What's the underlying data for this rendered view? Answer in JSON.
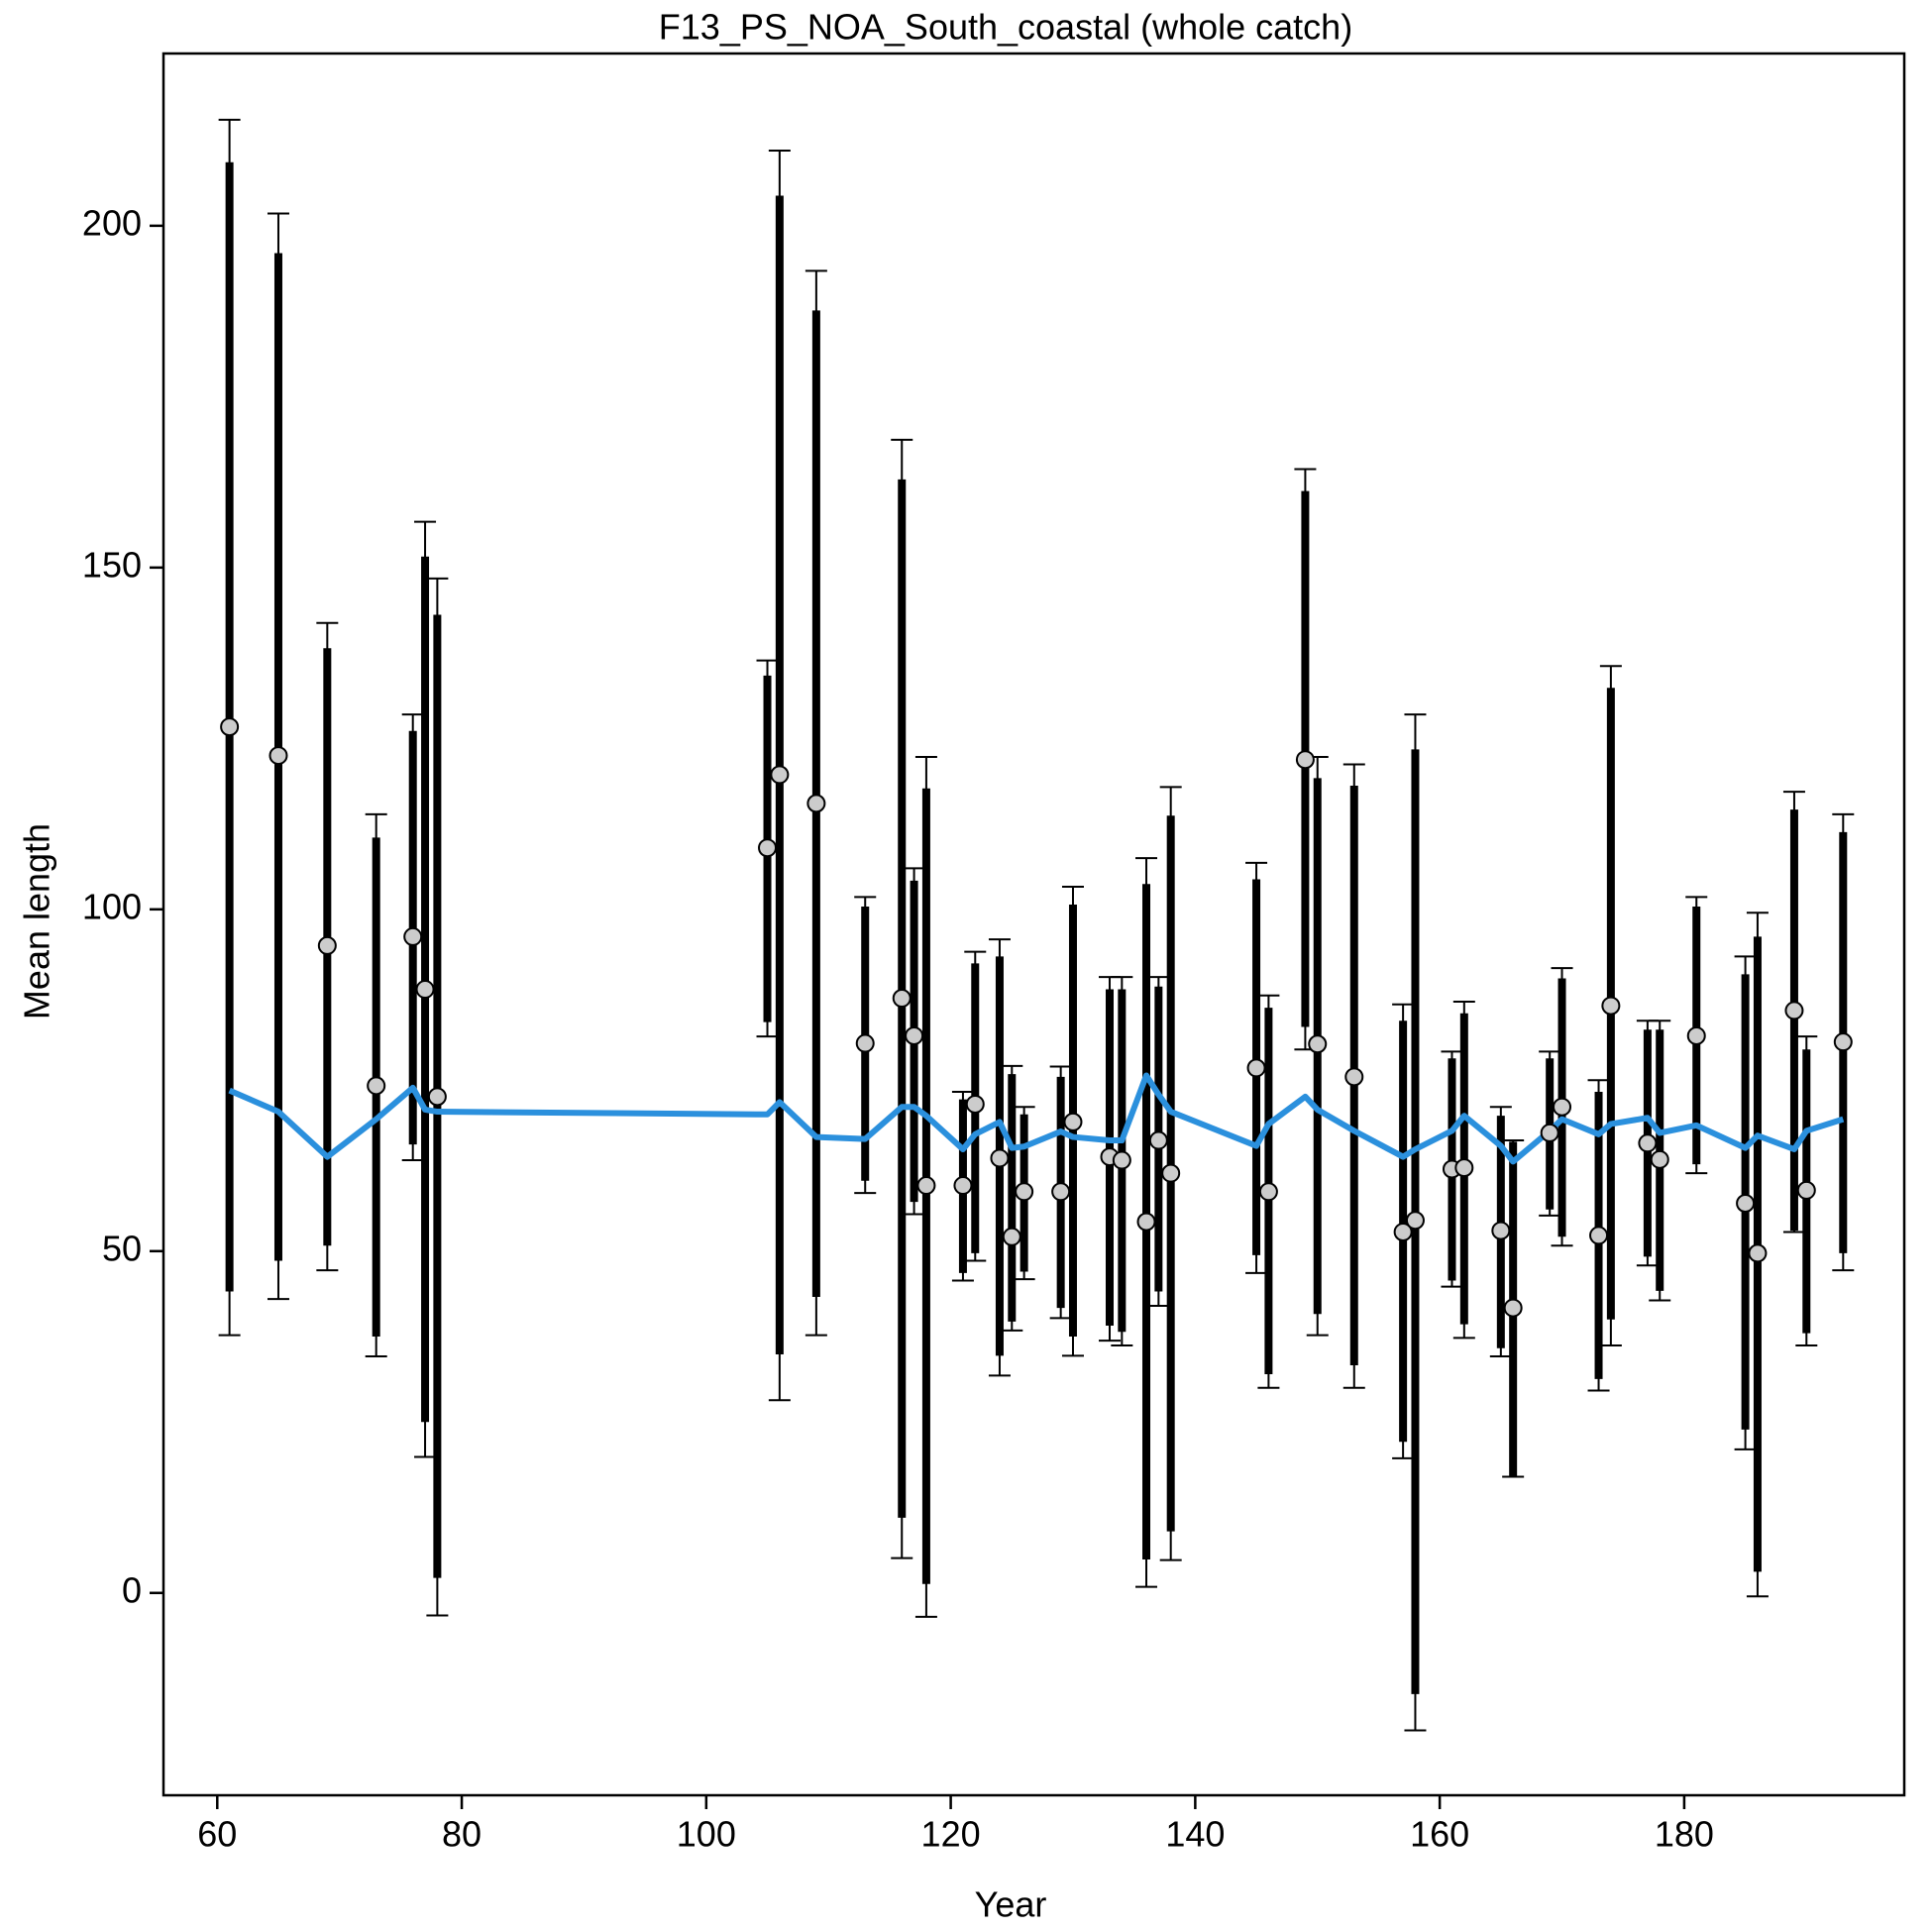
{
  "chart_data": {
    "type": "errorbar-line",
    "title": "F13_PS_NOA_South_coastal (whole catch)",
    "x_label": "Year",
    "y_label": "Mean length",
    "xlim": [
      55.6,
      198.0
    ],
    "ylim": [
      -29.6,
      225.2
    ],
    "xticks": [
      60,
      80,
      100,
      120,
      140,
      160,
      180
    ],
    "yticks": [
      0,
      50,
      100,
      150,
      200
    ],
    "x": [
      61,
      65,
      69,
      73,
      76,
      77,
      78,
      105,
      106,
      109,
      113,
      116,
      117,
      118,
      121,
      122,
      124,
      125,
      126,
      129,
      130,
      133,
      134,
      136,
      137,
      138,
      145,
      146,
      149,
      150,
      153,
      157,
      158,
      161,
      162,
      165,
      166,
      169,
      170,
      173,
      174,
      177,
      178,
      181,
      185,
      186,
      189,
      190,
      193
    ],
    "observed": {
      "color": "#cccccc",
      "values": [
        126.7,
        122.5,
        94.7,
        74.2,
        96.0,
        88.3,
        72.6,
        109.0,
        119.7,
        115.5,
        80.4,
        87.0,
        81.5,
        59.6,
        59.6,
        71.5,
        63.6,
        52.1,
        58.7,
        58.7,
        68.9,
        63.8,
        63.3,
        54.3,
        66.2,
        61.4,
        76.8,
        58.7,
        121.9,
        80.3,
        75.5,
        52.8,
        54.5,
        62.0,
        62.2,
        53.0,
        41.7,
        67.3,
        71.1,
        52.3,
        85.9,
        65.8,
        63.4,
        81.5,
        57.0,
        49.7,
        85.2,
        58.9,
        80.6
      ]
    },
    "inner_interval": {
      "color": "#000000",
      "lower": [
        44.1,
        48.6,
        50.8,
        37.5,
        65.6,
        25.0,
        2.2,
        83.5,
        34.9,
        43.3,
        60.3,
        11.0,
        57.2,
        1.3,
        46.8,
        49.7,
        34.7,
        39.7,
        47.0,
        41.7,
        37.5,
        39.1,
        38.2,
        4.9,
        44.1,
        9.0,
        49.4,
        32.0,
        82.8,
        40.8,
        33.3,
        22.1,
        -14.8,
        45.7,
        39.3,
        35.8,
        17.0,
        56.1,
        52.1,
        31.3,
        40.0,
        49.2,
        44.2,
        62.7,
        23.9,
        3.1,
        53.0,
        38.0,
        49.7
      ],
      "upper": [
        209.3,
        196.0,
        138.2,
        110.5,
        126.1,
        151.6,
        143.1,
        134.2,
        204.4,
        187.6,
        100.4,
        162.9,
        104.2,
        117.7,
        72.2,
        92.1,
        93.1,
        75.9,
        70.0,
        75.5,
        100.7,
        88.3,
        88.3,
        103.7,
        88.7,
        113.7,
        104.4,
        85.6,
        161.2,
        119.2,
        118.1,
        83.7,
        123.4,
        78.2,
        84.8,
        69.8,
        66.0,
        78.2,
        89.9,
        73.3,
        132.4,
        82.4,
        82.4,
        100.4,
        90.5,
        96.0,
        114.6,
        79.5,
        111.3
      ]
    },
    "outer_interval": {
      "color": "#000000",
      "lower": [
        37.7,
        43.0,
        47.2,
        34.6,
        63.3,
        19.9,
        -3.3,
        81.4,
        28.2,
        37.7,
        58.5,
        5.1,
        55.4,
        -3.5,
        45.7,
        48.6,
        31.8,
        38.4,
        45.9,
        40.2,
        34.7,
        36.9,
        36.2,
        0.9,
        42.0,
        4.8,
        46.8,
        30.0,
        79.5,
        37.7,
        30.0,
        19.7,
        -20.1,
        44.8,
        37.3,
        34.6,
        17.0,
        55.2,
        50.8,
        29.6,
        36.2,
        47.9,
        42.8,
        61.4,
        21.0,
        -0.5,
        52.8,
        36.2,
        47.2
      ],
      "upper": [
        215.5,
        201.8,
        141.9,
        113.9,
        128.5,
        156.7,
        148.4,
        136.4,
        211.0,
        193.4,
        101.8,
        168.7,
        106.0,
        122.3,
        73.3,
        93.8,
        95.6,
        77.1,
        71.1,
        77.0,
        103.3,
        90.1,
        90.1,
        107.5,
        90.1,
        117.9,
        106.8,
        87.4,
        164.4,
        122.3,
        121.2,
        86.1,
        128.5,
        79.2,
        86.5,
        71.1,
        66.2,
        79.2,
        91.4,
        75.0,
        135.6,
        83.7,
        83.7,
        101.8,
        93.1,
        99.5,
        117.2,
        81.4,
        113.9
      ]
    },
    "expected": {
      "color": "#2b90dd",
      "values": [
        73.5,
        70.4,
        63.8,
        69.3,
        73.9,
        70.7,
        70.4,
        70.0,
        71.8,
        66.7,
        66.4,
        71.1,
        71.1,
        69.8,
        64.9,
        67.1,
        68.9,
        65.1,
        65.3,
        67.5,
        66.7,
        66.2,
        66.2,
        75.7,
        72.9,
        70.4,
        65.4,
        68.6,
        72.6,
        70.7,
        67.6,
        63.8,
        64.9,
        67.6,
        69.8,
        65.4,
        63.1,
        67.6,
        69.3,
        67.1,
        68.6,
        69.5,
        67.3,
        68.4,
        65.1,
        66.9,
        64.9,
        67.6,
        69.3
      ]
    }
  }
}
